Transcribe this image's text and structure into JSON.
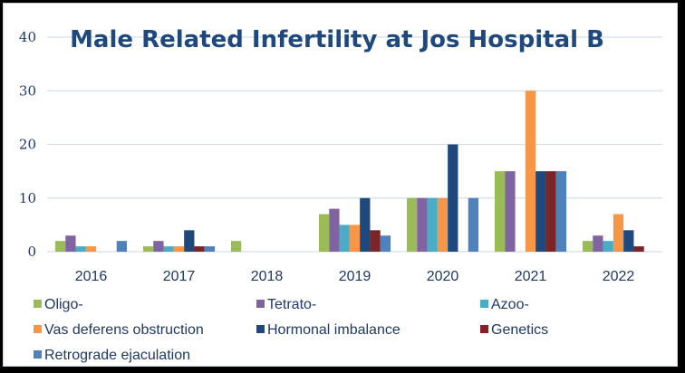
{
  "chart_data": {
    "type": "bar",
    "title": "Male Related Infertility at Jos Hospital B",
    "xlabel": "",
    "ylabel": "",
    "ylim": [
      0,
      40
    ],
    "yticks": [
      0,
      10,
      20,
      30,
      40
    ],
    "grid": true,
    "legend_position": "bottom",
    "categories": [
      "2016",
      "2017",
      "2018",
      "2019",
      "2020",
      "2021",
      "2022"
    ],
    "series": [
      {
        "name": "Oligo-",
        "color": "#9BBB59",
        "values": [
          2,
          1,
          2,
          7,
          10,
          15,
          2
        ]
      },
      {
        "name": "Tetrato-",
        "color": "#8064A2",
        "values": [
          3,
          2,
          0,
          8,
          10,
          15,
          3
        ]
      },
      {
        "name": "Azoo-",
        "color": "#4BACC6",
        "values": [
          1,
          1,
          0,
          5,
          10,
          0,
          2
        ]
      },
      {
        "name": "Vas deferens obstruction",
        "color": "#F79646",
        "values": [
          1,
          1,
          0,
          5,
          10,
          30,
          7
        ]
      },
      {
        "name": "Hormonal imbalance",
        "color": "#1F497D",
        "values": [
          0,
          4,
          0,
          10,
          20,
          15,
          4
        ]
      },
      {
        "name": "Genetics",
        "color": "#7F2424",
        "values": [
          0,
          1,
          0,
          4,
          0,
          15,
          1
        ]
      },
      {
        "name": "Retrograde ejaculation",
        "color": "#4F81BD",
        "values": [
          2,
          1,
          0,
          3,
          10,
          15,
          0
        ]
      }
    ]
  }
}
